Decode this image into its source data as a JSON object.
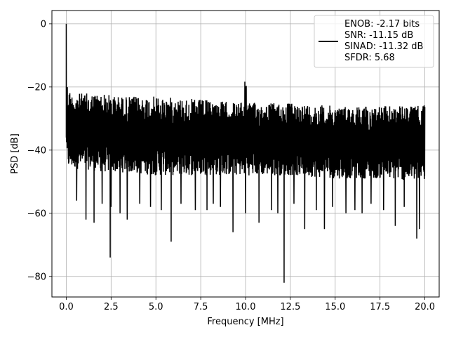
{
  "chart_data": {
    "type": "line",
    "title": "",
    "xlabel": "Frequency [MHz]",
    "ylabel": "PSD [dB]",
    "xlim": [
      -0.8,
      20.8
    ],
    "ylim": [
      -86.5,
      4.2
    ],
    "xticks": [
      0.0,
      2.5,
      5.0,
      7.5,
      10.0,
      12.5,
      15.0,
      17.5,
      20.0
    ],
    "xtick_labels": [
      "0.0",
      "2.5",
      "5.0",
      "7.5",
      "10.0",
      "12.5",
      "15.0",
      "17.5",
      "20.0"
    ],
    "yticks": [
      0,
      -20,
      -40,
      -60,
      -80
    ],
    "ytick_labels": [
      "0",
      "−20",
      "−40",
      "−60",
      "−80"
    ],
    "grid": true,
    "legend_position": "upper right",
    "line_color": "#000000",
    "series": [
      {
        "name": "ENOB: -2.17 bits\nSNR: -11.15 dB\nSINAD: -11.32 dB\nSFDR: 5.68",
        "legend_lines": [
          "ENOB: -2.17 bits",
          "SNR: -11.15 dB",
          "SINAD: -11.32 dB",
          "SFDR: 5.68"
        ],
        "description": "Noise-floor PSD spanning roughly -48 to -23 dB across 0–20 MHz, with a DC peak and a tone at 10 MHz",
        "envelope": {
          "x": [
            0.0,
            0.02,
            0.05,
            0.1,
            0.3,
            1.0,
            2.0,
            3.0,
            5.0,
            7.5,
            9.9,
            10.0,
            10.1,
            12.5,
            15.0,
            17.5,
            19.9,
            20.0
          ],
          "upper": [
            0.0,
            -16,
            -18,
            -20,
            -22,
            -22,
            -22,
            -23,
            -23,
            -24,
            -25,
            -10,
            -25,
            -25,
            -26,
            -26,
            -26,
            -21
          ],
          "lower": [
            -36,
            -46,
            -46,
            -46,
            -46,
            -46,
            -47,
            -47,
            -48,
            -48,
            -48,
            -48,
            -48,
            -48,
            -49,
            -49,
            -50,
            -50
          ]
        },
        "spikes": [
          {
            "x": 0.0,
            "y": 0.0
          },
          {
            "x": 0.58,
            "y": -56
          },
          {
            "x": 1.1,
            "y": -62
          },
          {
            "x": 1.55,
            "y": -63
          },
          {
            "x": 2.0,
            "y": -57
          },
          {
            "x": 2.45,
            "y": -74
          },
          {
            "x": 2.5,
            "y": -58
          },
          {
            "x": 3.0,
            "y": -60
          },
          {
            "x": 3.4,
            "y": -62
          },
          {
            "x": 4.1,
            "y": -57
          },
          {
            "x": 4.7,
            "y": -58
          },
          {
            "x": 5.3,
            "y": -59
          },
          {
            "x": 5.85,
            "y": -69
          },
          {
            "x": 6.4,
            "y": -57
          },
          {
            "x": 7.2,
            "y": -59
          },
          {
            "x": 7.85,
            "y": -59
          },
          {
            "x": 8.2,
            "y": -57
          },
          {
            "x": 8.6,
            "y": -58
          },
          {
            "x": 9.3,
            "y": -66
          },
          {
            "x": 10.0,
            "y": -60
          },
          {
            "x": 10.75,
            "y": -63
          },
          {
            "x": 11.45,
            "y": -59
          },
          {
            "x": 11.8,
            "y": -60
          },
          {
            "x": 12.15,
            "y": -82
          },
          {
            "x": 12.7,
            "y": -57
          },
          {
            "x": 13.3,
            "y": -65
          },
          {
            "x": 13.95,
            "y": -59
          },
          {
            "x": 14.4,
            "y": -65
          },
          {
            "x": 14.85,
            "y": -58
          },
          {
            "x": 15.6,
            "y": -60
          },
          {
            "x": 16.1,
            "y": -59
          },
          {
            "x": 16.5,
            "y": -60
          },
          {
            "x": 17.0,
            "y": -57
          },
          {
            "x": 17.7,
            "y": -59
          },
          {
            "x": 18.35,
            "y": -64
          },
          {
            "x": 18.85,
            "y": -58
          },
          {
            "x": 19.55,
            "y": -68
          },
          {
            "x": 19.7,
            "y": -65
          }
        ]
      }
    ]
  }
}
